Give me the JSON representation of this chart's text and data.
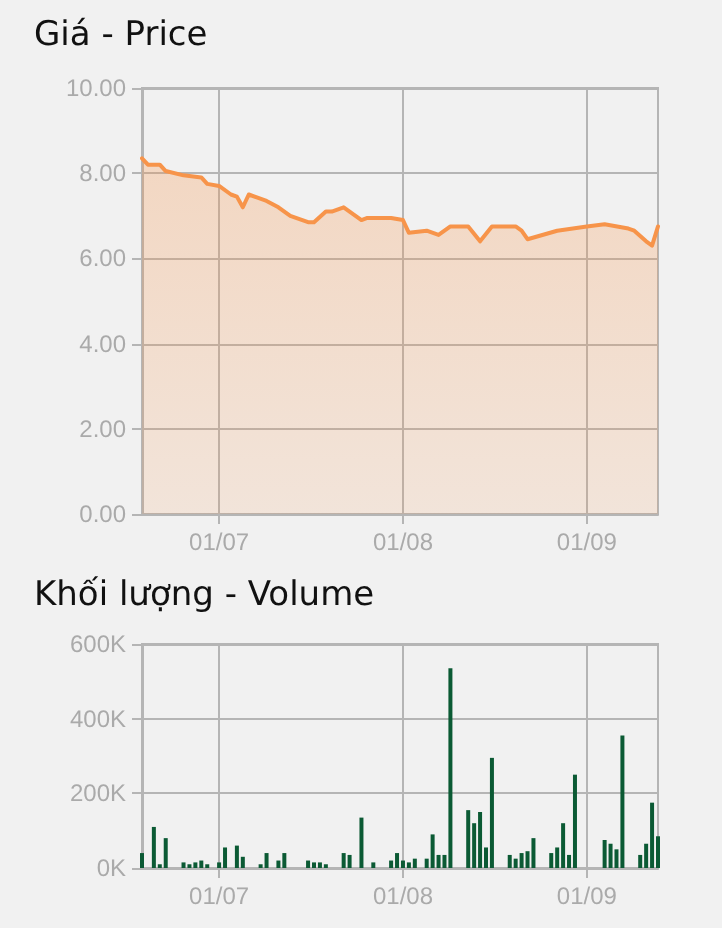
{
  "chart_data": [
    {
      "type": "area",
      "title": "Giá - Price",
      "x": [
        "--06-18",
        "--06-19",
        "--06-21",
        "--06-22",
        "--06-25",
        "--06-28",
        "--06-29",
        "--07-01",
        "--07-03",
        "--07-04",
        "--07-05",
        "--07-06",
        "--07-09",
        "--07-11",
        "--07-13",
        "--07-16",
        "--07-17",
        "--07-19",
        "--07-20",
        "--07-22",
        "--07-24",
        "--07-25",
        "--07-26",
        "--07-30",
        "--08-01",
        "--08-02",
        "--08-05",
        "--08-07",
        "--08-09",
        "--08-12",
        "--08-14",
        "--08-16",
        "--08-20",
        "--08-21",
        "--08-22",
        "--08-27",
        "--09-01",
        "--09-04",
        "--09-08",
        "--09-09",
        "--09-11",
        "--09-12",
        "--09-13"
      ],
      "series": [
        {
          "color": "#f7944a",
          "values": [
            8.35,
            8.2,
            8.2,
            8.05,
            7.95,
            7.9,
            7.75,
            7.7,
            7.5,
            7.45,
            7.2,
            7.5,
            7.35,
            7.2,
            7.0,
            6.85,
            6.85,
            7.1,
            7.1,
            7.2,
            7.0,
            6.9,
            6.95,
            6.95,
            6.9,
            6.6,
            6.65,
            6.55,
            6.75,
            6.75,
            6.4,
            6.75,
            6.75,
            6.65,
            6.45,
            6.65,
            6.75,
            6.8,
            6.7,
            6.65,
            6.4,
            6.3,
            6.75
          ]
        }
      ],
      "xlim": [
        "--06-18",
        "--09-13"
      ],
      "xticks": [
        {
          "value": "--07-01",
          "label": "01/07"
        },
        {
          "value": "--08-01",
          "label": "01/08"
        },
        {
          "value": "--09-01",
          "label": "01/09"
        }
      ],
      "ylim": [
        0,
        10
      ],
      "yticks": [
        {
          "value": 0,
          "label": "0.00"
        },
        {
          "value": 2,
          "label": "2.00"
        },
        {
          "value": 4,
          "label": "4.00"
        },
        {
          "value": 6,
          "label": "6.00"
        },
        {
          "value": 8,
          "label": "8.00"
        },
        {
          "value": 10,
          "label": "10.00"
        }
      ],
      "grid": true,
      "marker": "none",
      "line_style": "solid"
    },
    {
      "type": "bar",
      "title": "Khối lượng - Volume",
      "x": [
        "--06-18",
        "--06-20",
        "--06-21",
        "--06-22",
        "--06-25",
        "--06-26",
        "--06-27",
        "--06-28",
        "--06-29",
        "--07-01",
        "--07-02",
        "--07-04",
        "--07-05",
        "--07-08",
        "--07-09",
        "--07-11",
        "--07-12",
        "--07-16",
        "--07-17",
        "--07-18",
        "--07-19",
        "--07-22",
        "--07-23",
        "--07-25",
        "--07-27",
        "--07-30",
        "--07-31",
        "--08-01",
        "--08-02",
        "--08-03",
        "--08-05",
        "--08-06",
        "--08-07",
        "--08-08",
        "--08-09",
        "--08-12",
        "--08-13",
        "--08-14",
        "--08-15",
        "--08-16",
        "--08-19",
        "--08-20",
        "--08-21",
        "--08-22",
        "--08-23",
        "--08-26",
        "--08-27",
        "--08-28",
        "--08-29",
        "--08-30",
        "--09-04",
        "--09-05",
        "--09-06",
        "--09-07",
        "--09-10",
        "--09-11",
        "--09-12",
        "--09-13"
      ],
      "series": [
        {
          "color": "#0b5a34",
          "values": [
            40000,
            110000,
            10000,
            80000,
            15000,
            10000,
            15000,
            20000,
            10000,
            15000,
            55000,
            60000,
            30000,
            10000,
            40000,
            20000,
            40000,
            20000,
            15000,
            15000,
            10000,
            40000,
            35000,
            135000,
            15000,
            20000,
            40000,
            20000,
            15000,
            25000,
            25000,
            90000,
            35000,
            35000,
            535000,
            155000,
            120000,
            150000,
            55000,
            295000,
            35000,
            25000,
            40000,
            45000,
            80000,
            40000,
            55000,
            120000,
            35000,
            250000,
            75000,
            65000,
            50000,
            355000,
            35000,
            65000,
            175000,
            85000
          ]
        }
      ],
      "xlim": [
        "--06-18",
        "--09-13"
      ],
      "xticks": [
        {
          "value": "--07-01",
          "label": "01/07"
        },
        {
          "value": "--08-01",
          "label": "01/08"
        },
        {
          "value": "--09-01",
          "label": "01/09"
        }
      ],
      "ylim": [
        0,
        600000
      ],
      "yticks": [
        {
          "value": 0,
          "label": "0K"
        },
        {
          "value": 200000,
          "label": "200K"
        },
        {
          "value": 400000,
          "label": "400K"
        },
        {
          "value": 600000,
          "label": "600K"
        }
      ],
      "grid": true
    }
  ]
}
